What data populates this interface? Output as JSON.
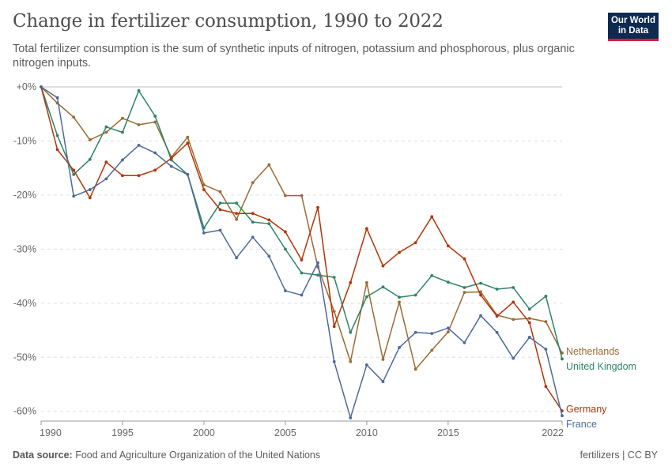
{
  "header": {
    "title": "Change in fertilizer consumption, 1990 to 2022",
    "subtitle": "Total fertilizer consumption is the sum of synthetic inputs of nitrogen, potassium and phosphorous, plus organic nitrogen inputs.",
    "logo_line1": "Our World",
    "logo_line2": "in Data"
  },
  "footer": {
    "source_label": "Data source:",
    "source_text": "Food and Agriculture Organization of the United Nations",
    "right_text": "fertilizers | CC BY"
  },
  "chart_data": {
    "type": "line",
    "x": [
      1990,
      1991,
      1992,
      1993,
      1994,
      1995,
      1996,
      1997,
      1998,
      1999,
      2000,
      2001,
      2002,
      2003,
      2004,
      2005,
      2006,
      2007,
      2008,
      2009,
      2010,
      2011,
      2012,
      2013,
      2014,
      2015,
      2016,
      2017,
      2018,
      2019,
      2020,
      2021,
      2022
    ],
    "x_ticks": [
      1990,
      1995,
      2000,
      2005,
      2010,
      2015,
      2022
    ],
    "x_tick_labels": [
      "1990",
      "1995",
      "2000",
      "2005",
      "2010",
      "2015",
      "2022"
    ],
    "xlim": [
      1990,
      2022
    ],
    "y_ticks": [
      0,
      -10,
      -20,
      -30,
      -40,
      -50,
      -60
    ],
    "y_tick_labels": [
      "+0%",
      "-10%",
      "-20%",
      "-30%",
      "-40%",
      "-50%",
      "-60%"
    ],
    "ylim": [
      -61.5,
      0
    ],
    "grid": "horizontal dashed",
    "legend": "right-end labels",
    "series": [
      {
        "name": "Netherlands",
        "color": "#9a6b32",
        "values": [
          0,
          -3,
          -5.6,
          -9.8,
          -8.4,
          -5.8,
          -7,
          -6.5,
          -13,
          -9.3,
          -18.1,
          -19.4,
          -24.5,
          -17.7,
          -14.4,
          -20.1,
          -20.1,
          -33.3,
          -41.5,
          -50.8,
          -36.2,
          -50.4,
          -39.8,
          -52.2,
          -48.7,
          -45.3,
          -38,
          -37.9,
          -42.2,
          -43,
          -42.8,
          -43.4,
          -49.2
        ]
      },
      {
        "name": "United Kingdom",
        "color": "#2d8464",
        "values": [
          0,
          -9,
          -16.2,
          -13.4,
          -7.4,
          -8.4,
          -0.7,
          -5.4,
          -13.5,
          -16.2,
          -26.1,
          -21.5,
          -21.5,
          -25,
          -25.3,
          -30,
          -34.4,
          -34.8,
          -35.2,
          -45.4,
          -38.8,
          -37,
          -38.9,
          -38.5,
          -34.9,
          -36.1,
          -37.1,
          -36.3,
          -37.4,
          -37.1,
          -41.1,
          -38.7,
          -50.3
        ]
      },
      {
        "name": "Germany",
        "color": "#b13507",
        "values": [
          0,
          -11.6,
          -15.4,
          -20.5,
          -13.9,
          -16.4,
          -16.4,
          -15.4,
          -13.2,
          -10.4,
          -19,
          -22.7,
          -23.4,
          -23.4,
          -24.6,
          -26.8,
          -32,
          -22.3,
          -44.3,
          -36.2,
          -26.2,
          -33.1,
          -30.6,
          -28.8,
          -24,
          -29.4,
          -31.8,
          -38.5,
          -42.4,
          -39.8,
          -43.6,
          -55.4,
          -59.9
        ]
      },
      {
        "name": "France",
        "color": "#4c6a9c",
        "values": [
          0,
          -2,
          -20.2,
          -19,
          -17,
          -13.5,
          -10.8,
          -12.2,
          -14.7,
          -16.2,
          -27,
          -26.5,
          -31.6,
          -27.8,
          -31.3,
          -37.7,
          -38.5,
          -32.5,
          -50.8,
          -61.2,
          -51.4,
          -54.5,
          -48.2,
          -45.4,
          -45.6,
          -44.6,
          -47.3,
          -42.3,
          -45.4,
          -50.2,
          -46.3,
          -48.5,
          -60.8
        ]
      }
    ]
  }
}
